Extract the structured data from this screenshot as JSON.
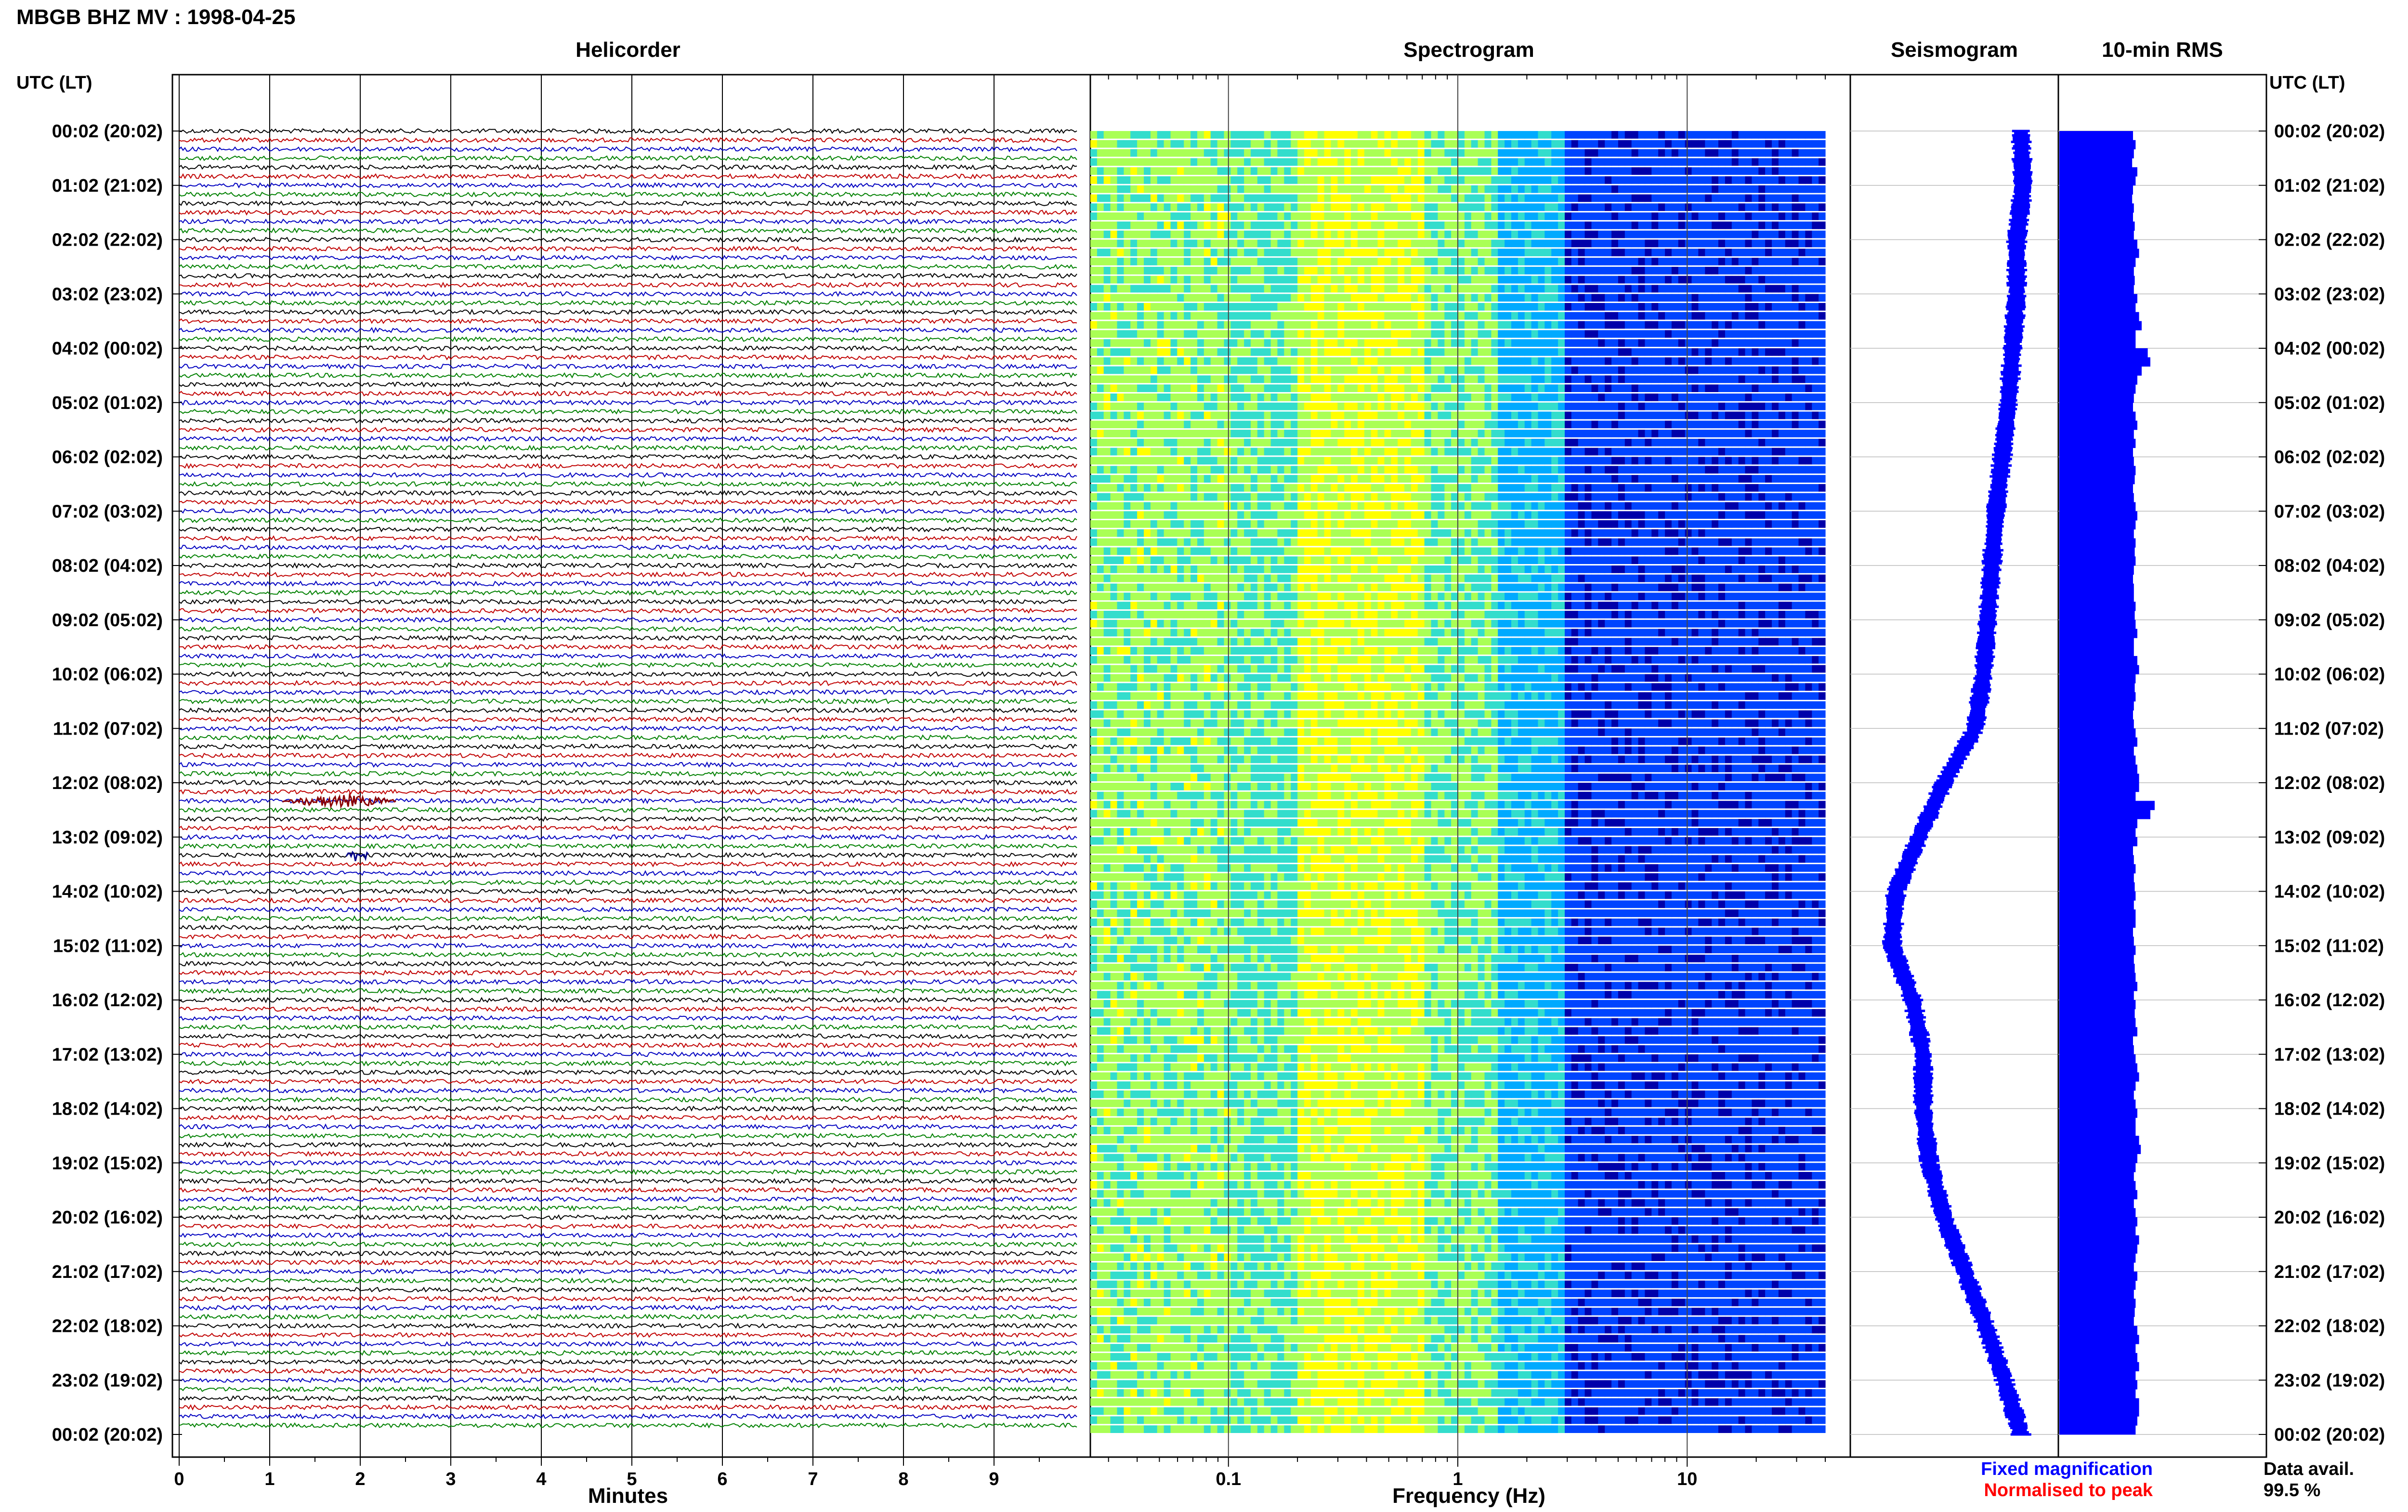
{
  "header": {
    "title": "MBGB BHZ MV : 1998-04-25",
    "utc_label_left": "UTC (LT)",
    "utc_label_right": "UTC (LT)"
  },
  "panels": {
    "helicorder": "Helicorder",
    "spectrogram": "Spectrogram",
    "seismogram": "Seismogram",
    "rms": "10-min RMS"
  },
  "time_labels": [
    "00:02 (20:02)",
    "01:02 (21:02)",
    "02:02 (22:02)",
    "03:02 (23:02)",
    "04:02 (00:02)",
    "05:02 (01:02)",
    "06:02 (02:02)",
    "07:02 (03:02)",
    "08:02 (04:02)",
    "09:02 (05:02)",
    "10:02 (06:02)",
    "11:02 (07:02)",
    "12:02 (08:02)",
    "13:02 (09:02)",
    "14:02 (10:02)",
    "15:02 (11:02)",
    "16:02 (12:02)",
    "17:02 (13:02)",
    "18:02 (14:02)",
    "19:02 (15:02)",
    "20:02 (16:02)",
    "21:02 (17:02)",
    "22:02 (18:02)",
    "23:02 (19:02)",
    "00:02 (20:02)"
  ],
  "legend": {
    "fixed": "Fixed magnification",
    "fixed_color": "#0000ff",
    "normalised": "Normalised to peak",
    "normalised_color": "#ff0000",
    "data_avail_label": "Data avail.",
    "data_avail_value": "99.5 %"
  },
  "chart_data": [
    {
      "type": "line",
      "name": "helicorder",
      "title": "Helicorder",
      "xlabel": "Minutes",
      "xlim": [
        0,
        10
      ],
      "x_ticks": [
        0,
        1,
        2,
        3,
        4,
        5,
        6,
        7,
        8,
        9
      ],
      "trace_colors": [
        "#000000",
        "#c00000",
        "#0000c0",
        "#008000"
      ],
      "minutes_per_line": 10,
      "events": [
        {
          "hour_index": 12,
          "start_min": 1.15,
          "end_min": 2.4,
          "color": "#8b0000"
        },
        {
          "hour_index": 13,
          "start_min": 1.85,
          "end_min": 2.1,
          "color": "#00008b"
        }
      ]
    },
    {
      "type": "heatmap",
      "name": "spectrogram",
      "title": "Spectrogram",
      "xlabel": "Frequency (Hz)",
      "x_scale": "log",
      "xlim": [
        0.025,
        50
      ],
      "x_ticks": [
        0.1,
        1,
        10
      ],
      "x_tick_labels": [
        "0.1",
        "1",
        "10"
      ],
      "dominant_band_hz": [
        0.2,
        0.6
      ],
      "colormap": [
        "#0000aa",
        "#0044ff",
        "#00aaff",
        "#33ddcc",
        "#aaff55",
        "#ffff00"
      ]
    },
    {
      "type": "line",
      "name": "seismogram",
      "title": "Seismogram",
      "envelope": [
        0.82,
        0.83,
        0.8,
        0.8,
        0.78,
        0.76,
        0.73,
        0.7,
        0.68,
        0.66,
        0.64,
        0.6,
        0.45,
        0.33,
        0.22,
        0.2,
        0.3,
        0.35,
        0.35,
        0.38,
        0.45,
        0.55,
        0.65,
        0.74,
        0.82
      ]
    },
    {
      "type": "bar",
      "name": "rms",
      "title": "10-min RMS",
      "values": [
        0.85,
        0.88,
        0.86,
        0.84,
        0.9,
        0.88,
        0.85,
        0.84,
        0.86,
        0.85,
        0.87,
        0.86,
        0.9,
        0.92,
        0.88,
        0.86,
        0.87,
        0.86,
        0.9,
        0.88,
        0.92,
        0.95,
        0.88,
        0.88,
        1.02,
        1.05,
        0.95,
        0.9,
        0.88,
        0.86,
        0.85,
        0.88,
        0.9,
        0.86,
        0.88,
        0.85,
        0.86,
        0.88,
        0.87,
        0.85,
        0.86,
        0.88,
        0.9,
        0.88,
        0.86,
        0.88,
        0.87,
        0.88,
        0.86,
        0.85,
        0.86,
        0.86,
        0.88,
        0.87,
        0.88,
        0.9,
        0.86,
        0.86,
        0.9,
        0.92,
        0.88,
        0.87,
        0.88,
        0.86,
        0.85,
        0.86,
        0.88,
        0.9,
        0.86,
        0.88,
        0.9,
        0.92,
        0.92,
        0.88,
        1.1,
        1.05,
        0.9,
        0.88,
        0.9,
        0.85,
        0.86,
        0.88,
        0.86,
        0.87,
        0.88,
        0.86,
        0.88,
        0.88,
        0.85,
        0.86,
        0.88,
        0.86,
        0.87,
        0.88,
        0.9,
        0.86,
        0.88,
        0.87,
        0.88,
        0.9,
        0.85,
        0.86,
        0.88,
        0.9,
        0.92,
        0.88,
        0.86,
        0.88,
        0.9,
        0.88,
        0.88,
        0.92,
        0.94,
        0.9,
        0.88,
        0.86,
        0.88,
        0.9,
        0.86,
        0.88,
        0.9,
        0.88,
        0.92,
        0.9,
        0.88,
        0.86,
        0.9,
        0.88,
        0.86,
        0.88,
        0.87,
        0.86,
        0.9,
        0.92,
        0.88,
        0.9,
        0.92,
        0.88,
        0.9,
        0.88,
        0.92,
        0.92,
        0.9,
        0.88
      ]
    }
  ]
}
